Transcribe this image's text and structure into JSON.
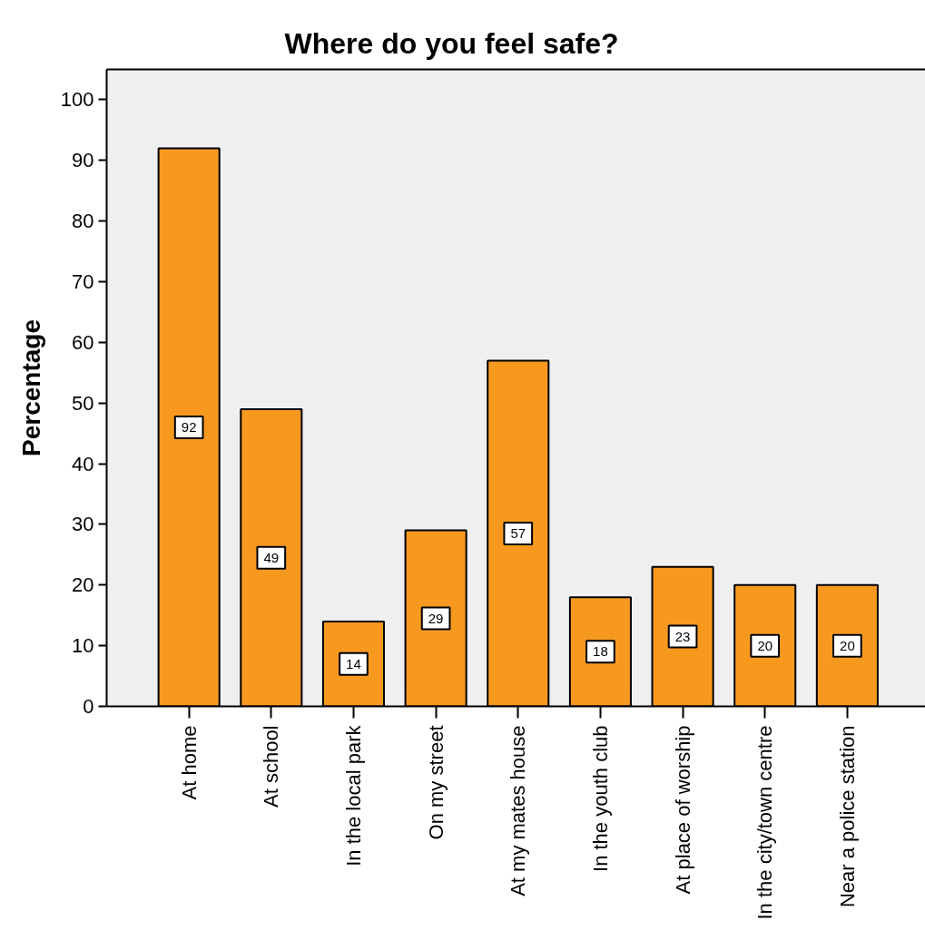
{
  "chart_data": {
    "type": "bar",
    "title": "Where do you feel safe?",
    "ylabel": "Percentage",
    "categories": [
      "At home",
      "At school",
      "In the local park",
      "On my street",
      "At my mates house",
      "In the youth club",
      "At place of worship",
      "In the city/town centre",
      "Near a police station"
    ],
    "values": [
      92,
      49,
      14,
      29,
      57,
      18,
      23,
      20,
      20
    ],
    "color": "#f7991f",
    "ylim": [
      0,
      105
    ],
    "yticks": [
      0,
      10,
      20,
      30,
      40,
      50,
      60,
      70,
      80,
      90,
      100
    ],
    "data_labels": true
  }
}
